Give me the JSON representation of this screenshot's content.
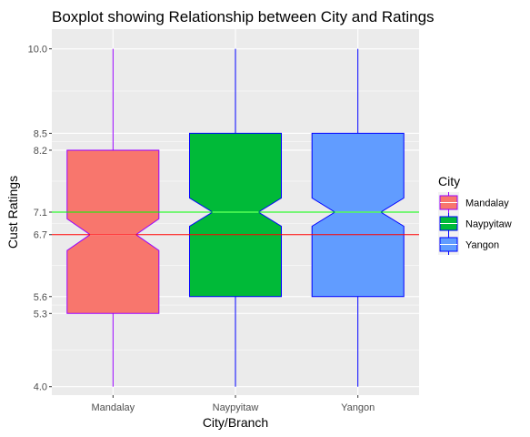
{
  "chart_data": {
    "type": "boxplot",
    "title": "Boxplot showing Relationship between City and Ratings",
    "xlabel": "City/Branch",
    "ylabel": "Cust Ratings",
    "ylim": [
      3.85,
      10.35
    ],
    "y_ticks": [
      4.0,
      5.3,
      5.6,
      6.7,
      7.1,
      8.2,
      8.5,
      10.0
    ],
    "y_tick_labels": [
      "4.0",
      "5.3",
      "5.6",
      "6.7",
      "7.1",
      "8.2",
      "8.5",
      "10.0"
    ],
    "categories": [
      "Mandalay",
      "Naypyitaw",
      "Yangon"
    ],
    "notched": true,
    "boxes": [
      {
        "category": "Mandalay",
        "min": 4.0,
        "q1": 5.3,
        "median": 6.7,
        "q3": 8.2,
        "max": 10.0,
        "notch_low": 6.42,
        "notch_high": 6.98,
        "fill": "#F8766D",
        "stroke": "#9900FF"
      },
      {
        "category": "Naypyitaw",
        "min": 4.0,
        "q1": 5.6,
        "median": 7.1,
        "q3": 8.5,
        "max": 10.0,
        "notch_low": 6.85,
        "notch_high": 7.35,
        "fill": "#00BA38",
        "stroke": "#0000FF"
      },
      {
        "category": "Yangon",
        "min": 4.0,
        "q1": 5.6,
        "median": 7.1,
        "q3": 8.5,
        "max": 10.0,
        "notch_low": 6.85,
        "notch_high": 7.35,
        "fill": "#619CFF",
        "stroke": "#0000FF"
      }
    ],
    "reference_lines": [
      {
        "y": 7.1,
        "color": "#00FF00"
      },
      {
        "y": 6.7,
        "color": "#FF0000"
      }
    ],
    "legend": {
      "title": "City",
      "placement": "right",
      "entries": [
        "Mandalay",
        "Naypyitaw",
        "Yangon"
      ]
    },
    "panel_background": "#EBEBEB",
    "grid": true
  }
}
